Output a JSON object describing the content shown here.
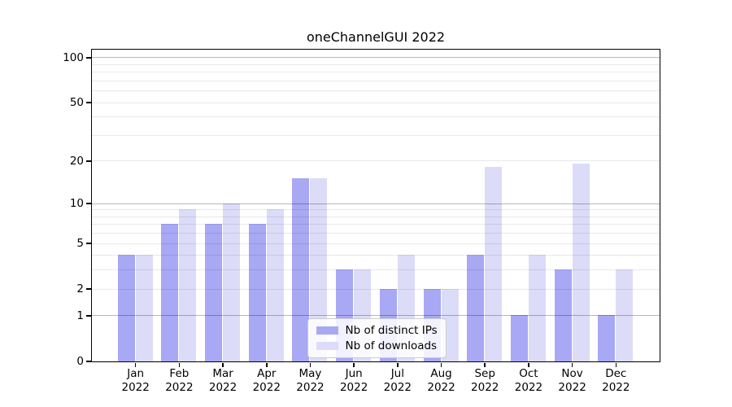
{
  "title": "oneChannelGUI 2022",
  "chart_data": {
    "type": "bar",
    "title": "oneChannelGUI 2022",
    "categories": [
      "Jan 2022",
      "Feb 2022",
      "Mar 2022",
      "Apr 2022",
      "May 2022",
      "Jun 2022",
      "Jul 2022",
      "Aug 2022",
      "Sep 2022",
      "Oct 2022",
      "Nov 2022",
      "Dec 2022"
    ],
    "series": [
      {
        "name": "Nb of distinct IPs",
        "color": "#a8a8f4",
        "values": [
          4,
          7,
          7,
          7,
          15,
          3,
          2,
          2,
          4,
          1,
          3,
          1
        ]
      },
      {
        "name": "Nb of downloads",
        "color": "#dcdcf9",
        "values": [
          4,
          9,
          10,
          9,
          15,
          3,
          4,
          2,
          18,
          4,
          19,
          3
        ]
      }
    ],
    "xlabel": "",
    "ylabel": "",
    "yscale": "symlog",
    "ylim": [
      0,
      113
    ],
    "yticks": [
      0,
      1,
      2,
      5,
      10,
      20,
      50,
      100
    ],
    "major_gridlines": [
      1,
      10,
      100
    ],
    "minor_gridlines": [
      2,
      3,
      4,
      5,
      6,
      7,
      8,
      9,
      20,
      30,
      40,
      50,
      60,
      70,
      80,
      90
    ],
    "grid": true,
    "legend_position": "lower center"
  },
  "colors": {
    "background": "#ffffff",
    "spine": "#000000",
    "series_ips": "#a8a8f4",
    "series_downloads": "#dcdcf9",
    "legend_border": "#cccccc"
  }
}
